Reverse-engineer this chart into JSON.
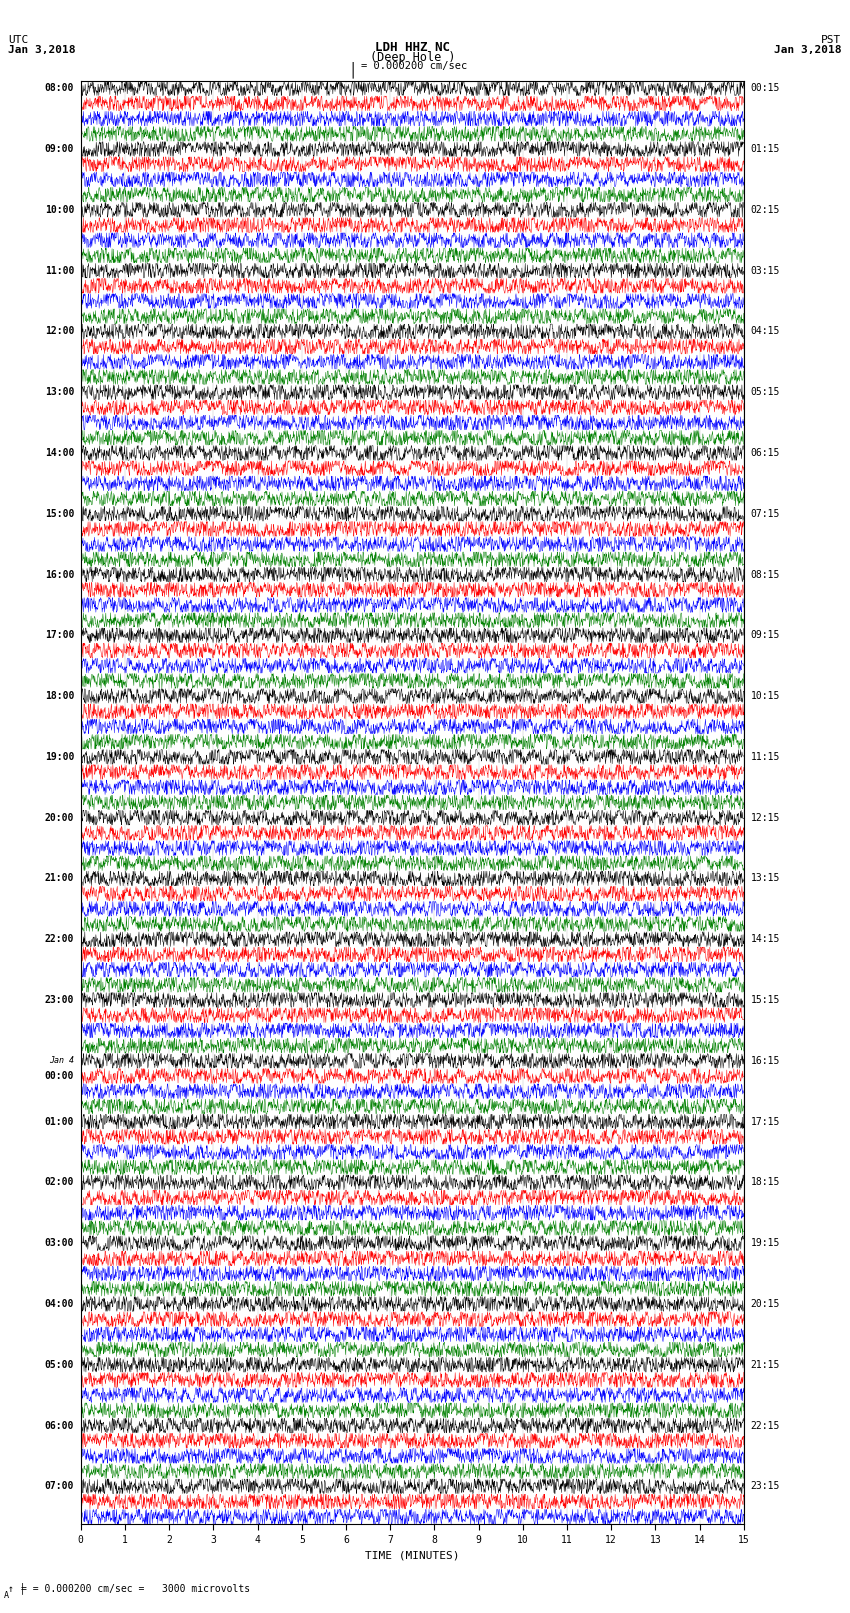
{
  "title_line1": "LDH HHZ NC",
  "title_line2": "(Deep Hole )",
  "scale_label": "= 0.000200 cm/sec",
  "footer_label": "= 0.000200 cm/sec =   3000 microvolts",
  "utc_label": "UTC",
  "utc_date": "Jan 3,2018",
  "pst_label": "PST",
  "pst_date": "Jan 3,2018",
  "xlabel": "TIME (MINUTES)",
  "xlim": [
    0,
    15
  ],
  "xticks": [
    0,
    1,
    2,
    3,
    4,
    5,
    6,
    7,
    8,
    9,
    10,
    11,
    12,
    13,
    14,
    15
  ],
  "colors": [
    "black",
    "red",
    "blue",
    "green"
  ],
  "fig_width": 8.5,
  "fig_height": 16.13,
  "bg_color": "white",
  "line_width": 0.35,
  "utc_times_left": [
    "08:00",
    "",
    "",
    "",
    "09:00",
    "",
    "",
    "",
    "10:00",
    "",
    "",
    "",
    "11:00",
    "",
    "",
    "",
    "12:00",
    "",
    "",
    "",
    "13:00",
    "",
    "",
    "",
    "14:00",
    "",
    "",
    "",
    "15:00",
    "",
    "",
    "",
    "16:00",
    "",
    "",
    "",
    "17:00",
    "",
    "",
    "",
    "18:00",
    "",
    "",
    "",
    "19:00",
    "",
    "",
    "",
    "20:00",
    "",
    "",
    "",
    "21:00",
    "",
    "",
    "",
    "22:00",
    "",
    "",
    "",
    "23:00",
    "",
    "",
    "",
    "Jan 4",
    "00:00",
    "",
    "",
    "01:00",
    "",
    "",
    "",
    "02:00",
    "",
    "",
    "",
    "03:00",
    "",
    "",
    "",
    "04:00",
    "",
    "",
    "",
    "05:00",
    "",
    "",
    "",
    "06:00",
    "",
    "",
    "",
    "07:00",
    "",
    ""
  ],
  "utc_times_left_type": [
    "bold",
    "",
    "",
    "",
    "bold",
    "",
    "",
    "",
    "bold",
    "",
    "",
    "",
    "bold",
    "",
    "",
    "",
    "bold",
    "",
    "",
    "",
    "bold",
    "",
    "",
    "",
    "bold",
    "",
    "",
    "",
    "bold",
    "",
    "",
    "",
    "bold",
    "",
    "",
    "",
    "bold",
    "",
    "",
    "",
    "bold",
    "",
    "",
    "",
    "bold",
    "",
    "",
    "",
    "bold",
    "",
    "",
    "",
    "bold",
    "",
    "",
    "",
    "bold",
    "",
    "",
    "",
    "bold",
    "",
    "",
    "",
    "italic",
    "bold",
    "",
    "",
    "bold",
    "",
    "",
    "",
    "bold",
    "",
    "",
    "",
    "bold",
    "",
    "",
    "",
    "bold",
    "",
    "",
    "",
    "bold",
    "",
    "",
    "",
    "bold",
    "",
    "",
    "",
    "bold",
    "",
    ""
  ],
  "pst_times_right": [
    "00:15",
    "",
    "",
    "",
    "01:15",
    "",
    "",
    "",
    "02:15",
    "",
    "",
    "",
    "03:15",
    "",
    "",
    "",
    "04:15",
    "",
    "",
    "",
    "05:15",
    "",
    "",
    "",
    "06:15",
    "",
    "",
    "",
    "07:15",
    "",
    "",
    "",
    "08:15",
    "",
    "",
    "",
    "09:15",
    "",
    "",
    "",
    "10:15",
    "",
    "",
    "",
    "11:15",
    "",
    "",
    "",
    "12:15",
    "",
    "",
    "",
    "13:15",
    "",
    "",
    "",
    "14:15",
    "",
    "",
    "",
    "15:15",
    "",
    "",
    "",
    "16:15",
    "",
    "",
    "",
    "17:15",
    "",
    "",
    "",
    "18:15",
    "",
    "",
    "",
    "19:15",
    "",
    "",
    "",
    "20:15",
    "",
    "",
    "",
    "21:15",
    "",
    "",
    "",
    "22:15",
    "",
    "",
    "",
    "23:15",
    "",
    ""
  ],
  "total_rows": 95,
  "n_groups": 24,
  "traces_per_group": 4
}
